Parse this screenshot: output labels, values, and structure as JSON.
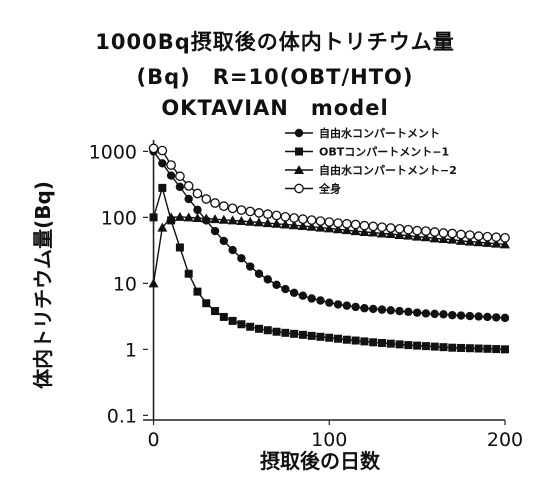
{
  "chart_data": {
    "type": "line",
    "title_lines": [
      "1000Bq摂取後の体内トリチウム量",
      "(Bq)　R=10(OBT/HTO)",
      "OKTAVIAN　model"
    ],
    "xlabel": "摂取後の日数",
    "ylabel": "体内トリチウム量(Bq)",
    "xlim": [
      0,
      200
    ],
    "ylim": [
      0.1,
      1000
    ],
    "y_scale": "log",
    "x_ticks": [
      0,
      100,
      200
    ],
    "y_ticks": [
      {
        "v": 1000,
        "label": "1000"
      },
      {
        "v": 100,
        "label": "100"
      },
      {
        "v": 10,
        "label": "10"
      },
      {
        "v": 1,
        "label": "1"
      },
      {
        "v": 0.1,
        "label": "0.1"
      }
    ],
    "grid": false,
    "legend_position": "top-right",
    "series": [
      {
        "name": "自由水コンパートメント",
        "marker": "circle-filled",
        "x": [
          0,
          5,
          10,
          15,
          20,
          25,
          30,
          35,
          40,
          45,
          50,
          55,
          60,
          65,
          70,
          75,
          80,
          85,
          90,
          95,
          100,
          105,
          110,
          115,
          120,
          125,
          130,
          135,
          140,
          145,
          150,
          155,
          160,
          165,
          170,
          175,
          180,
          185,
          190,
          195,
          200
        ],
        "values": [
          1000,
          660,
          430,
          290,
          190,
          130,
          90,
          62,
          44,
          32,
          24,
          18,
          14,
          11.5,
          9.5,
          8.2,
          7.2,
          6.5,
          5.9,
          5.5,
          5.1,
          4.8,
          4.6,
          4.4,
          4.2,
          4.1,
          4.0,
          3.9,
          3.8,
          3.7,
          3.6,
          3.5,
          3.45,
          3.4,
          3.3,
          3.25,
          3.2,
          3.15,
          3.1,
          3.05,
          3.0
        ]
      },
      {
        "name": "OBTコンパートメント−1",
        "marker": "square-filled",
        "x": [
          0,
          5,
          10,
          15,
          20,
          25,
          30,
          35,
          40,
          45,
          50,
          55,
          60,
          65,
          70,
          75,
          80,
          85,
          90,
          95,
          100,
          105,
          110,
          115,
          120,
          125,
          130,
          135,
          140,
          145,
          150,
          155,
          160,
          165,
          170,
          175,
          180,
          185,
          190,
          195,
          200
        ],
        "values": [
          100,
          280,
          90,
          35,
          14,
          7.5,
          5.0,
          3.8,
          3.1,
          2.7,
          2.4,
          2.2,
          2.05,
          1.95,
          1.85,
          1.78,
          1.72,
          1.66,
          1.6,
          1.55,
          1.5,
          1.45,
          1.4,
          1.36,
          1.32,
          1.28,
          1.25,
          1.22,
          1.19,
          1.16,
          1.14,
          1.12,
          1.1,
          1.08,
          1.06,
          1.05,
          1.04,
          1.03,
          1.02,
          1.01,
          1.0
        ]
      },
      {
        "name": "自由水コンパートメント−2",
        "marker": "triangle-filled",
        "x": [
          0,
          5,
          10,
          15,
          20,
          25,
          30,
          35,
          40,
          45,
          50,
          55,
          60,
          65,
          70,
          75,
          80,
          85,
          90,
          95,
          100,
          105,
          110,
          115,
          120,
          125,
          130,
          135,
          140,
          145,
          150,
          155,
          160,
          165,
          170,
          175,
          180,
          185,
          190,
          195,
          200
        ],
        "values": [
          10,
          70,
          100,
          102,
          100,
          98,
          96,
          94,
          92,
          90,
          88,
          86,
          84,
          82,
          80,
          78,
          76,
          74,
          72,
          70,
          68,
          66,
          64,
          62,
          60,
          59,
          57,
          56,
          54,
          53,
          51,
          50,
          48,
          47,
          46,
          44,
          43,
          42,
          41,
          40,
          39
        ]
      },
      {
        "name": "全身",
        "marker": "circle-open",
        "x": [
          0,
          5,
          10,
          15,
          20,
          25,
          30,
          35,
          40,
          45,
          50,
          55,
          60,
          65,
          70,
          75,
          80,
          85,
          90,
          95,
          100,
          105,
          110,
          115,
          120,
          125,
          130,
          135,
          140,
          145,
          150,
          155,
          160,
          165,
          170,
          175,
          180,
          185,
          190,
          195,
          200
        ],
        "values": [
          1110,
          1030,
          620,
          420,
          300,
          230,
          190,
          165,
          148,
          137,
          129,
          123,
          117,
          112,
          107,
          102,
          98,
          94,
          91,
          88,
          85,
          82,
          80,
          78,
          75,
          73,
          71,
          69,
          67,
          65,
          63,
          62,
          60,
          58,
          57,
          55,
          54,
          52,
          51,
          50,
          49
        ]
      }
    ]
  }
}
